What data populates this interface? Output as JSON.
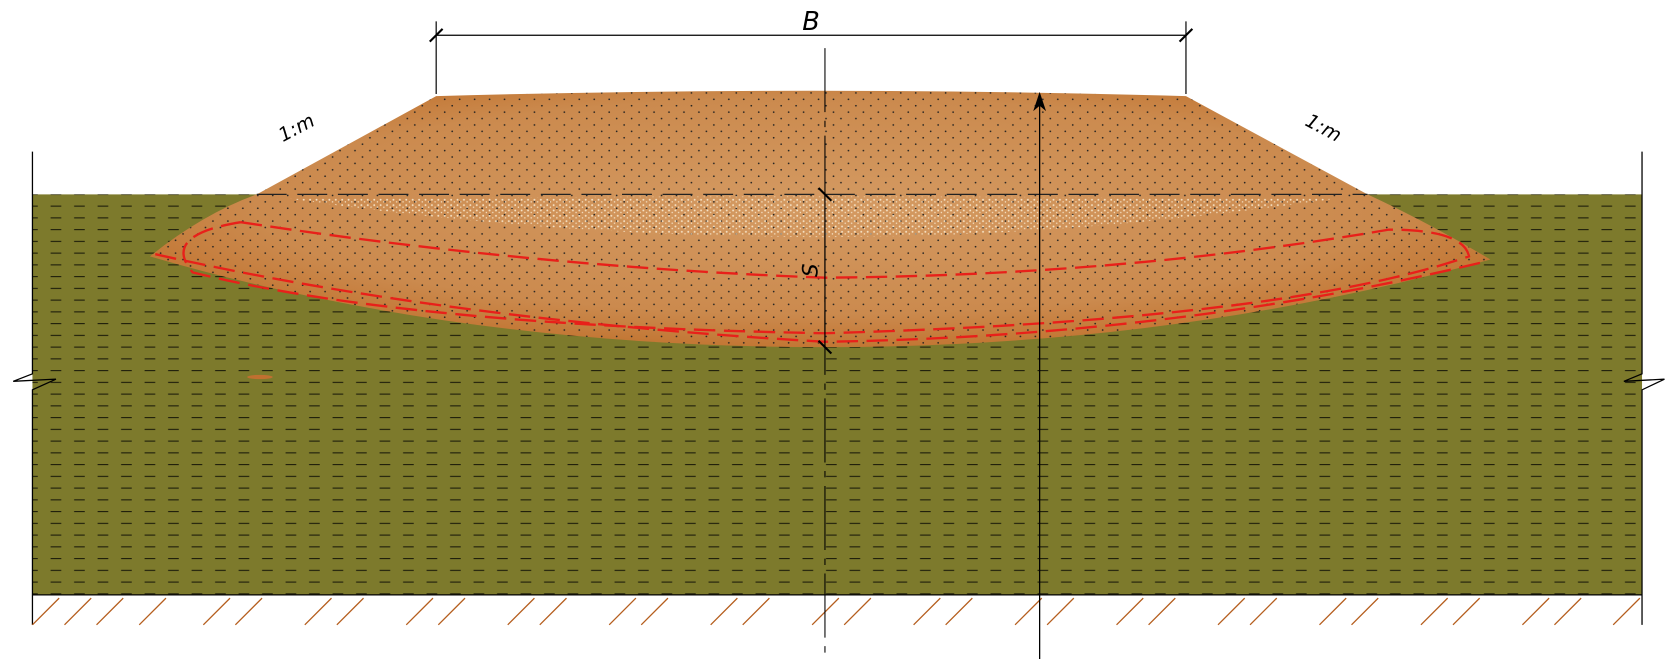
{
  "dimensions": {
    "width_label": "B",
    "settlement_label": "S"
  },
  "slopes": {
    "left": "1:m",
    "right": "1:m"
  }
}
